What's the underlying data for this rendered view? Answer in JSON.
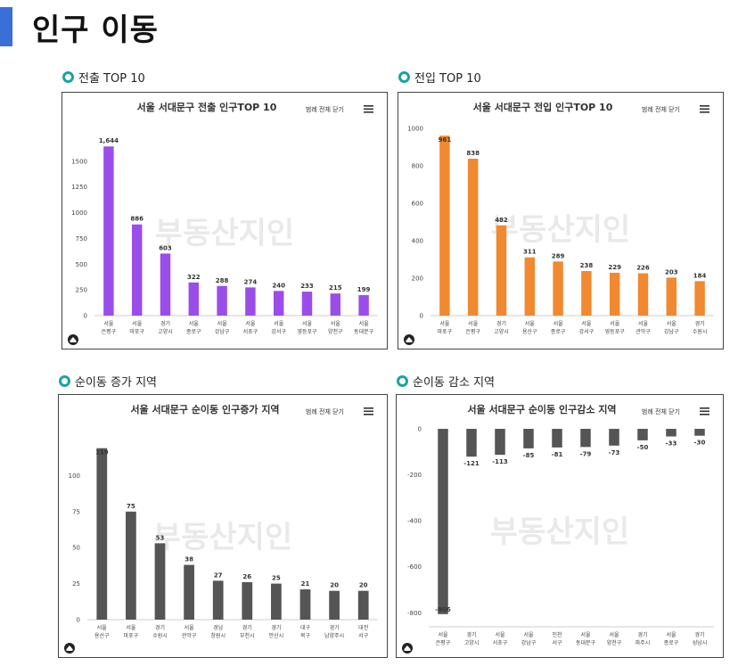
{
  "page": {
    "title": "인구 이동"
  },
  "sections": [
    {
      "label": "전출 TOP 10"
    },
    {
      "label": "전입 TOP 10"
    },
    {
      "label": "순이동 증가 지역"
    },
    {
      "label": "순이동 감소 지역"
    }
  ],
  "legend_button": "범례 전체 닫기",
  "watermark": "부동산지인",
  "colors": {
    "purple": "#9b4dea",
    "orange": "#f0892f",
    "dark": "#555555",
    "accent": "#3a6fd8",
    "teal": "#1aa3a3"
  },
  "chart_data": [
    {
      "type": "bar",
      "title": "서울 서대문구 전출 인구TOP 10",
      "ylim": [
        0,
        1750
      ],
      "yticks": [
        0,
        250,
        500,
        750,
        1000,
        1250,
        1500
      ],
      "categories": [
        [
          "서울",
          "은평구"
        ],
        [
          "서울",
          "마포구"
        ],
        [
          "경기",
          "고양시"
        ],
        [
          "서울",
          "종로구"
        ],
        [
          "서울",
          "강남구"
        ],
        [
          "서울",
          "서초구"
        ],
        [
          "서울",
          "강서구"
        ],
        [
          "서울",
          "영등포구"
        ],
        [
          "서울",
          "양천구"
        ],
        [
          "서울",
          "동대문구"
        ]
      ],
      "values": [
        1644,
        886,
        603,
        322,
        288,
        274,
        240,
        233,
        215,
        199
      ],
      "labels": [
        "1,644",
        "886",
        "603",
        "322",
        "288",
        "274",
        "240",
        "233",
        "215",
        "199"
      ],
      "color": "#9b4dea",
      "grid": false
    },
    {
      "type": "bar",
      "title": "서울 서대문구 전입 인구TOP 10",
      "ylim": [
        0,
        1000
      ],
      "yticks": [
        0,
        200,
        400,
        600,
        800,
        1000
      ],
      "categories": [
        [
          "서울",
          "마포구"
        ],
        [
          "서울",
          "은평구"
        ],
        [
          "경기",
          "고양시"
        ],
        [
          "서울",
          "용산구"
        ],
        [
          "서울",
          "종로구"
        ],
        [
          "서울",
          "강서구"
        ],
        [
          "서울",
          "영등포구"
        ],
        [
          "서울",
          "관악구"
        ],
        [
          "서울",
          "강남구"
        ],
        [
          "경기",
          "수원시"
        ]
      ],
      "values": [
        961,
        838,
        482,
        311,
        289,
        238,
        229,
        226,
        203,
        184
      ],
      "labels": [
        "961",
        "838",
        "482",
        "311",
        "289",
        "238",
        "229",
        "226",
        "203",
        "184"
      ],
      "color": "#f0892f",
      "grid": false
    },
    {
      "type": "bar",
      "title": "서울 서대문구 순이동 인구증가 지역",
      "ylim": [
        0,
        125
      ],
      "yticks": [
        0,
        25,
        50,
        75,
        100
      ],
      "categories": [
        [
          "서울",
          "용산구"
        ],
        [
          "서울",
          "마포구"
        ],
        [
          "경기",
          "수원시"
        ],
        [
          "서울",
          "관악구"
        ],
        [
          "경남",
          "창원시"
        ],
        [
          "경기",
          "부천시"
        ],
        [
          "경기",
          "안산시"
        ],
        [
          "대구",
          "북구"
        ],
        [
          "경기",
          "남양주시"
        ],
        [
          "대전",
          "서구"
        ]
      ],
      "values": [
        119,
        75,
        53,
        38,
        27,
        26,
        25,
        21,
        20,
        20
      ],
      "labels": [
        "119",
        "75",
        "53",
        "38",
        "27",
        "26",
        "25",
        "21",
        "20",
        "20"
      ],
      "color": "#555555",
      "grid": false
    },
    {
      "type": "bar",
      "title": "서울 서대문구 순이동 인구감소 지역",
      "ylim": [
        -830,
        0
      ],
      "yticks": [
        0,
        -200,
        -400,
        -600,
        -800
      ],
      "categories": [
        [
          "서울",
          "은평구"
        ],
        [
          "경기",
          "고양시"
        ],
        [
          "서울",
          "서초구"
        ],
        [
          "서울",
          "강남구"
        ],
        [
          "인천",
          "서구"
        ],
        [
          "서울",
          "동대문구"
        ],
        [
          "서울",
          "양천구"
        ],
        [
          "경기",
          "파주시"
        ],
        [
          "서울",
          "종로구"
        ],
        [
          "경기",
          "성남시"
        ]
      ],
      "values": [
        -806,
        -121,
        -113,
        -85,
        -81,
        -79,
        -73,
        -50,
        -33,
        -30
      ],
      "labels": [
        "-806",
        "-121",
        "-113",
        "-85",
        "-81",
        "-79",
        "-73",
        "-50",
        "-33",
        "-30"
      ],
      "color": "#555555",
      "grid": false
    }
  ]
}
